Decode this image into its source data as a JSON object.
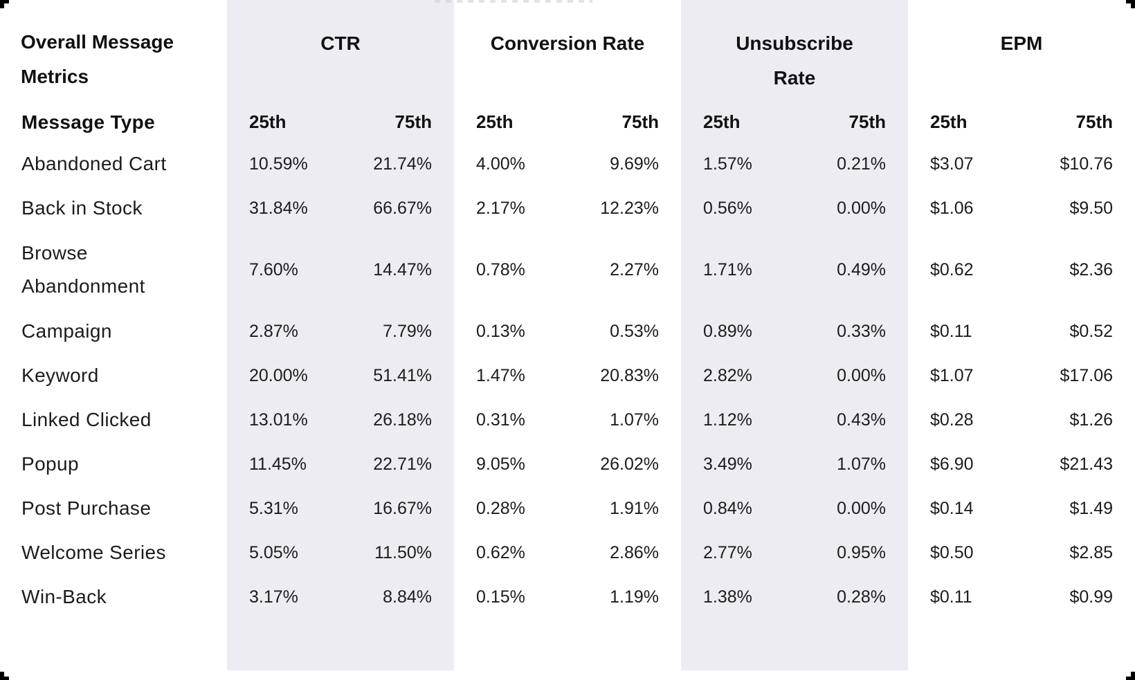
{
  "colors": {
    "background": "#FFFFFF",
    "column_band": "#ECECF2",
    "heading_text": "#111114",
    "body_text": "#1C1C1F",
    "corner_marker": "#000000"
  },
  "table": {
    "corner_label": "Overall Message Metrics",
    "row_header": "Message Type",
    "groups": [
      {
        "label": "CTR",
        "sub": [
          "25th",
          "75th"
        ]
      },
      {
        "label": "Conversion Rate",
        "sub": [
          "25th",
          "75th"
        ]
      },
      {
        "label": "Unsubscribe\nRate",
        "sub": [
          "25th",
          "75th"
        ]
      },
      {
        "label": "EPM",
        "sub": [
          "25th",
          "75th"
        ]
      }
    ],
    "rows": [
      {
        "type": "Abandoned Cart",
        "values": [
          "10.59%",
          "21.74%",
          "4.00%",
          "9.69%",
          "1.57%",
          "0.21%",
          "$3.07",
          "$10.76"
        ]
      },
      {
        "type": "Back in Stock",
        "values": [
          "31.84%",
          "66.67%",
          "2.17%",
          "12.23%",
          "0.56%",
          "0.00%",
          "$1.06",
          "$9.50"
        ]
      },
      {
        "type": "Browse Abandonment",
        "values": [
          "7.60%",
          "14.47%",
          "0.78%",
          "2.27%",
          "1.71%",
          "0.49%",
          "$0.62",
          "$2.36"
        ]
      },
      {
        "type": "Campaign",
        "values": [
          "2.87%",
          "7.79%",
          "0.13%",
          "0.53%",
          "0.89%",
          "0.33%",
          "$0.11",
          "$0.52"
        ]
      },
      {
        "type": "Keyword",
        "values": [
          "20.00%",
          "51.41%",
          "1.47%",
          "20.83%",
          "2.82%",
          "0.00%",
          "$1.07",
          "$17.06"
        ]
      },
      {
        "type": "Linked Clicked",
        "values": [
          "13.01%",
          "26.18%",
          "0.31%",
          "1.07%",
          "1.12%",
          "0.43%",
          "$0.28",
          "$1.26"
        ]
      },
      {
        "type": "Popup",
        "values": [
          "11.45%",
          "22.71%",
          "9.05%",
          "26.02%",
          "3.49%",
          "1.07%",
          "$6.90",
          "$21.43"
        ]
      },
      {
        "type": "Post Purchase",
        "values": [
          "5.31%",
          "16.67%",
          "0.28%",
          "1.91%",
          "0.84%",
          "0.00%",
          "$0.14",
          "$1.49"
        ]
      },
      {
        "type": "Welcome Series",
        "values": [
          "5.05%",
          "11.50%",
          "0.62%",
          "2.86%",
          "2.77%",
          "0.95%",
          "$0.50",
          "$2.85"
        ]
      },
      {
        "type": "Win-Back",
        "values": [
          "3.17%",
          "8.84%",
          "0.15%",
          "1.19%",
          "1.38%",
          "0.28%",
          "$0.11",
          "$0.99"
        ]
      }
    ]
  },
  "chart_data": {
    "type": "table",
    "title": "Overall Message Metrics",
    "row_dimension": "Message Type",
    "columns": [
      "CTR 25th",
      "CTR 75th",
      "Conversion Rate 25th",
      "Conversion Rate 75th",
      "Unsubscribe Rate 25th",
      "Unsubscribe Rate 75th",
      "EPM 25th",
      "EPM 75th"
    ],
    "rows": [
      {
        "message_type": "Abandoned Cart",
        "values": [
          "10.59%",
          "21.74%",
          "4.00%",
          "9.69%",
          "1.57%",
          "0.21%",
          "$3.07",
          "$10.76"
        ]
      },
      {
        "message_type": "Back in Stock",
        "values": [
          "31.84%",
          "66.67%",
          "2.17%",
          "12.23%",
          "0.56%",
          "0.00%",
          "$1.06",
          "$9.50"
        ]
      },
      {
        "message_type": "Browse Abandonment",
        "values": [
          "7.60%",
          "14.47%",
          "0.78%",
          "2.27%",
          "1.71%",
          "0.49%",
          "$0.62",
          "$2.36"
        ]
      },
      {
        "message_type": "Campaign",
        "values": [
          "2.87%",
          "7.79%",
          "0.13%",
          "0.53%",
          "0.89%",
          "0.33%",
          "$0.11",
          "$0.52"
        ]
      },
      {
        "message_type": "Keyword",
        "values": [
          "20.00%",
          "51.41%",
          "1.47%",
          "20.83%",
          "2.82%",
          "0.00%",
          "$1.07",
          "$17.06"
        ]
      },
      {
        "message_type": "Linked Clicked",
        "values": [
          "13.01%",
          "26.18%",
          "0.31%",
          "1.07%",
          "1.12%",
          "0.43%",
          "$0.28",
          "$1.26"
        ]
      },
      {
        "message_type": "Popup",
        "values": [
          "11.45%",
          "22.71%",
          "9.05%",
          "26.02%",
          "3.49%",
          "1.07%",
          "$6.90",
          "$21.43"
        ]
      },
      {
        "message_type": "Post Purchase",
        "values": [
          "5.31%",
          "16.67%",
          "0.28%",
          "1.91%",
          "0.84%",
          "0.00%",
          "$0.14",
          "$1.49"
        ]
      },
      {
        "message_type": "Welcome Series",
        "values": [
          "5.05%",
          "11.50%",
          "0.62%",
          "2.86%",
          "2.77%",
          "0.95%",
          "$0.50",
          "$2.85"
        ]
      },
      {
        "message_type": "Win-Back",
        "values": [
          "3.17%",
          "8.84%",
          "0.15%",
          "1.19%",
          "1.38%",
          "0.28%",
          "$0.11",
          "$0.99"
        ]
      }
    ],
    "layout": {
      "banded_column_groups": [
        "CTR",
        "Unsubscribe Rate"
      ],
      "grid": "off",
      "alignment": "25th left-aligned, 75th right-aligned"
    }
  }
}
